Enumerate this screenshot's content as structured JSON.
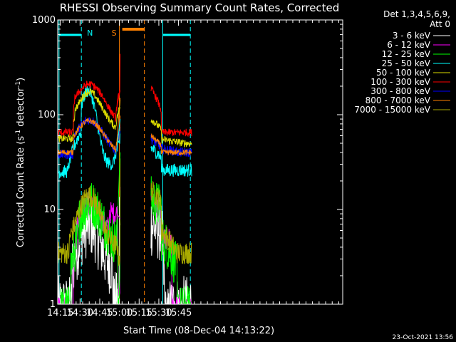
{
  "chart_data": {
    "type": "line",
    "title": "RHESSI Observing Summary Count Rates, Corrected",
    "xlabel": "Start Time (08-Dec-04 14:13:22)",
    "ylabel_main": "Corrected Count Rate (s",
    "ylabel_sup1": "-1",
    "ylabel_mid": " detector",
    "ylabel_sup2": "-1",
    "ylabel_end": ")",
    "yscale": "log",
    "ylim": [
      1,
      1000
    ],
    "xlim_min": [
      853,
      1070
    ],
    "yticks": [
      {
        "value": 1,
        "label": "1"
      },
      {
        "value": 10,
        "label": "10"
      },
      {
        "value": 100,
        "label": "100"
      },
      {
        "value": 1000,
        "label": "1000"
      }
    ],
    "xticks": [
      {
        "value": 855,
        "label": "14:15"
      },
      {
        "value": 870,
        "label": "14:30"
      },
      {
        "value": 885,
        "label": "14:45"
      },
      {
        "value": 900,
        "label": "15:00"
      },
      {
        "value": 915,
        "label": "15:15"
      },
      {
        "value": 930,
        "label": "15:30"
      },
      {
        "value": 945,
        "label": "15:45"
      }
    ],
    "legend_header": [
      "Det 1,3,4,5,6,9,",
      "Att 0"
    ],
    "legend_position": "right",
    "series": [
      {
        "name": "3 - 6 keV",
        "color": "#ffffff"
      },
      {
        "name": "6 - 12 keV",
        "color": "#ff00ff"
      },
      {
        "name": "12 - 25 keV",
        "color": "#00ff00"
      },
      {
        "name": "25 - 50 keV",
        "color": "#00ffff"
      },
      {
        "name": "50 - 100 keV",
        "color": "#dddd00"
      },
      {
        "name": "100 - 300 keV",
        "color": "#ff0000"
      },
      {
        "name": "300 - 800 keV",
        "color": "#0000ff"
      },
      {
        "name": "800 - 7000 keV",
        "color": "#ff8000"
      },
      {
        "name": "7000 - 15000 keV",
        "color": "#aaaa00"
      }
    ],
    "annotations": [
      {
        "label": "N",
        "color": "#00ffff",
        "kind": "night",
        "start": 854,
        "end": 871
      },
      {
        "label": "S",
        "color": "#ff8000",
        "kind": "saa",
        "start": 900,
        "end": 919
      },
      {
        "label": "",
        "color": "#00ffff",
        "kind": "night",
        "start": 933,
        "end": 954
      }
    ],
    "gap": [
      919,
      924
    ],
    "timestamp": "23-Oct-2021 13:56"
  }
}
